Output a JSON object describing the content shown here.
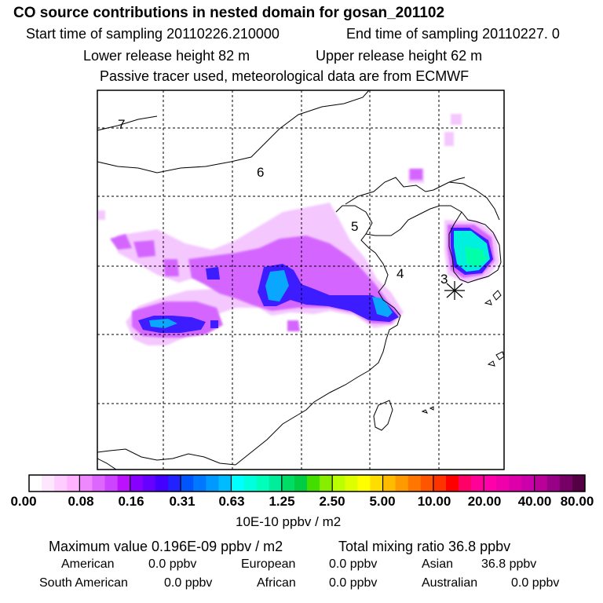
{
  "header": {
    "title": "CO  source contributions in nested domain for gosan_201102",
    "start_label": "Start time of sampling 20110226.210000",
    "end_label": "End time of sampling 20110227.     0",
    "lower_label": "Lower release height   82 m",
    "upper_label": "Upper release height   62 m",
    "note": "Passive tracer used, meteorological data are from ECMWF"
  },
  "map": {
    "region_labels": [
      "7",
      "6",
      "5",
      "4",
      "3"
    ],
    "receptor": "gosan"
  },
  "colorbar": {
    "ticks": [
      "0.00",
      "0.08",
      "0.16",
      "0.31",
      "0.63",
      "1.25",
      "2.50",
      "5.00",
      "10.00",
      "20.00",
      "40.00",
      "80.00"
    ],
    "units": "10E-10 ppbv / m2",
    "colors": [
      "#ffffff",
      "#ffe6ff",
      "#ffccff",
      "#ffb3ff",
      "#ee88ff",
      "#dd66ff",
      "#cc44ff",
      "#bb11ff",
      "#8800ff",
      "#6600ff",
      "#4400ff",
      "#2222ff",
      "#0055ff",
      "#0077ff",
      "#0099ff",
      "#00bbff",
      "#00ffff",
      "#00ffdd",
      "#00ffbb",
      "#00ee99",
      "#00dd66",
      "#00cc44",
      "#44dd00",
      "#88ee00",
      "#bbff00",
      "#ddff00",
      "#ffff00",
      "#ffdd00",
      "#ffbb00",
      "#ff9900",
      "#ff7700",
      "#ff5500",
      "#ff3300",
      "#ff0000",
      "#ff0066",
      "#ff0099",
      "#ff00aa",
      "#ee00aa",
      "#dd00aa",
      "#cc00aa",
      "#bb0099",
      "#990088",
      "#770066",
      "#550044"
    ]
  },
  "stats": {
    "max_label": "Maximum value  0.196E-09 ppbv / m2",
    "total_label": "Total mixing ratio       36.8 ppbv",
    "rows": [
      [
        {
          "name": "American",
          "value": "0.0 ppbv"
        },
        {
          "name": "European",
          "value": "0.0 ppbv"
        },
        {
          "name": "Asian",
          "value": "36.8 ppbv"
        }
      ],
      [
        {
          "name": "South American",
          "value": "0.0 ppbv"
        },
        {
          "name": "African",
          "value": "0.0 ppbv"
        },
        {
          "name": "Australian",
          "value": "0.0 ppbv"
        }
      ]
    ]
  }
}
